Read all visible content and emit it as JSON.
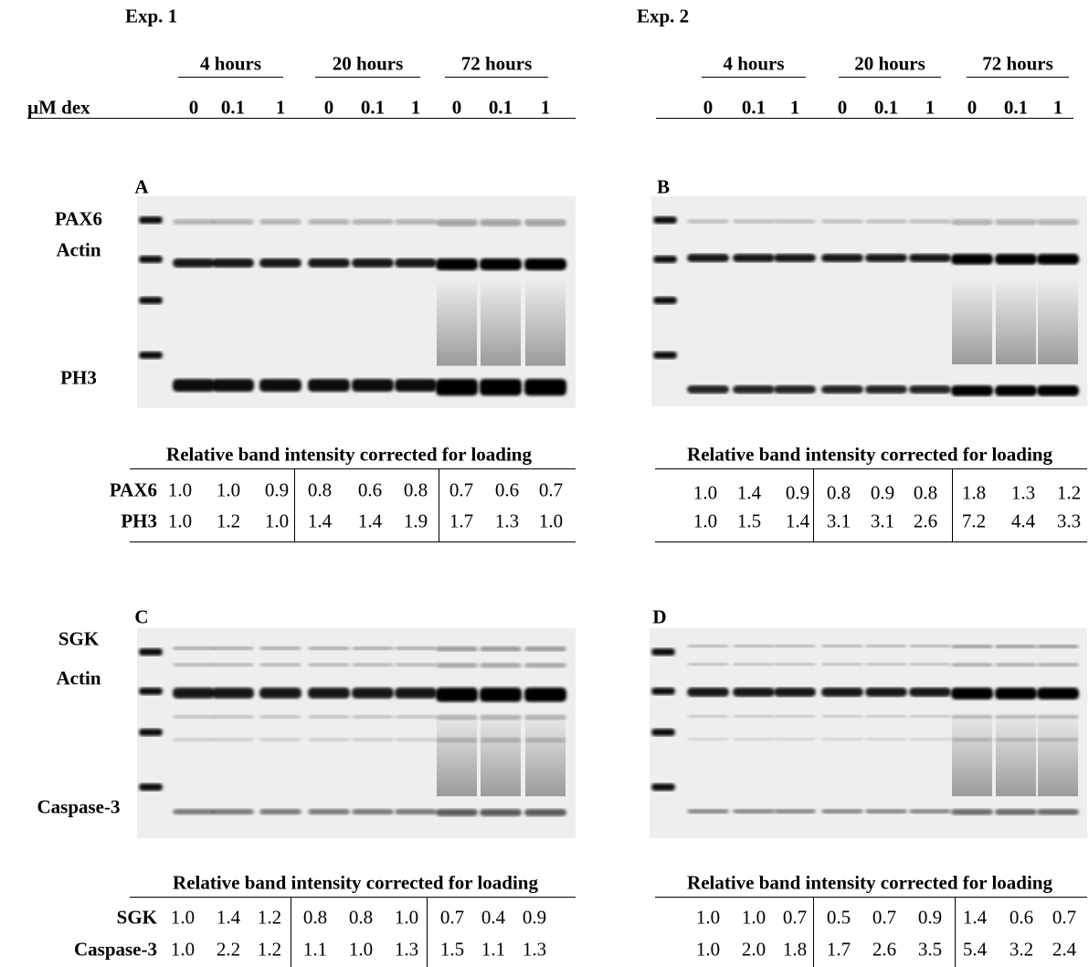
{
  "experiments": [
    {
      "label": "Exp. 1",
      "groups": [
        "4 hours",
        "20 hours",
        "72 hours"
      ],
      "dose_label": "µM dex",
      "doses": [
        "0",
        "0.1",
        "1",
        "0",
        "0.1",
        "1",
        "0",
        "0.1",
        "1"
      ],
      "panels": [
        {
          "letter": "A",
          "blot_labels": [
            "PAX6",
            "Actin",
            "PH3"
          ],
          "table_title": "Relative band intensity corrected for loading",
          "rows": [
            {
              "name": "PAX6",
              "values": [
                "1.0",
                "1.0",
                "0.9",
                "0.8",
                "0.6",
                "0.8",
                "0.7",
                "0.6",
                "0.7"
              ]
            },
            {
              "name": "PH3",
              "values": [
                "1.0",
                "1.2",
                "1.0",
                "1.4",
                "1.4",
                "1.9",
                "1.7",
                "1.3",
                "1.0"
              ]
            }
          ]
        },
        {
          "letter": "C",
          "blot_labels": [
            "SGK",
            "Actin",
            "Caspase-3"
          ],
          "table_title": "Relative band intensity corrected for loading",
          "rows": [
            {
              "name": "SGK",
              "values": [
                "1.0",
                "1.4",
                "1.2",
                "0.8",
                "0.8",
                "1.0",
                "0.7",
                "0.4",
                "0.9"
              ]
            },
            {
              "name": "Caspase-3",
              "values": [
                "1.0",
                "2.2",
                "1.2",
                "1.1",
                "1.0",
                "1.3",
                "1.5",
                "1.1",
                "1.3"
              ]
            }
          ]
        }
      ]
    },
    {
      "label": "Exp. 2",
      "groups": [
        "4 hours",
        "20 hours",
        "72 hours"
      ],
      "doses": [
        "0",
        "0.1",
        "1",
        "0",
        "0.1",
        "1",
        "0",
        "0.1",
        "1"
      ],
      "panels": [
        {
          "letter": "B",
          "table_title": "Relative band intensity corrected for loading",
          "rows": [
            {
              "values": [
                "1.0",
                "1.4",
                "0.9",
                "0.8",
                "0.9",
                "0.8",
                "1.8",
                "1.3",
                "1.2"
              ]
            },
            {
              "values": [
                "1.0",
                "1.5",
                "1.4",
                "3.1",
                "3.1",
                "2.6",
                "7.2",
                "4.4",
                "3.3"
              ]
            }
          ]
        },
        {
          "letter": "D",
          "table_title": "Relative band intensity corrected for loading",
          "rows": [
            {
              "values": [
                "1.0",
                "1.0",
                "0.7",
                "0.5",
                "0.7",
                "0.9",
                "1.4",
                "0.6",
                "0.7"
              ]
            },
            {
              "values": [
                "1.0",
                "2.0",
                "1.8",
                "1.7",
                "2.6",
                "3.5",
                "5.4",
                "3.2",
                "2.4"
              ]
            }
          ]
        }
      ]
    }
  ]
}
